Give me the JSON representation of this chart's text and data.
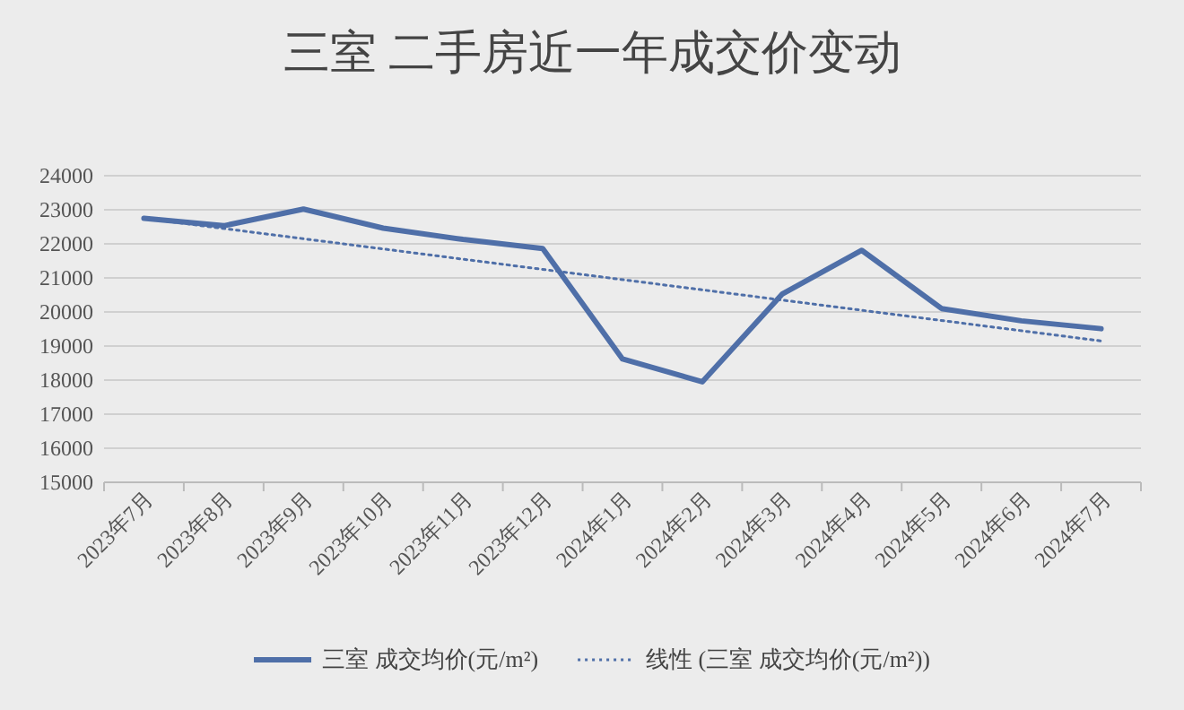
{
  "chart_data": {
    "type": "line",
    "title": "三室 二手房近一年成交价变动",
    "categories": [
      "2023年7月",
      "2023年8月",
      "2023年9月",
      "2023年10月",
      "2023年11月",
      "2023年12月",
      "2024年1月",
      "2024年2月",
      "2024年3月",
      "2024年4月",
      "2024年5月",
      "2024年6月",
      "2024年7月"
    ],
    "series": [
      {
        "name": "三室 成交均价(元/m²)",
        "color": "#4f6fa8",
        "line_style": "solid",
        "values": [
          22750,
          22530,
          23020,
          22460,
          22130,
          21860,
          18620,
          17950,
          20520,
          21810,
          20100,
          19740,
          19510
        ]
      },
      {
        "name": "线性 (三室 成交均价(元/m²))",
        "color": "#4f6fa8",
        "line_style": "dotted",
        "x": [
          "2023年7月",
          "2024年7月"
        ],
        "values": [
          22750,
          19150
        ]
      }
    ],
    "ylim": [
      15000,
      24000
    ],
    "yticks": [
      15000,
      16000,
      17000,
      18000,
      19000,
      20000,
      21000,
      22000,
      23000,
      24000
    ],
    "grid": "y",
    "legend": "bottom",
    "marker": "none"
  }
}
